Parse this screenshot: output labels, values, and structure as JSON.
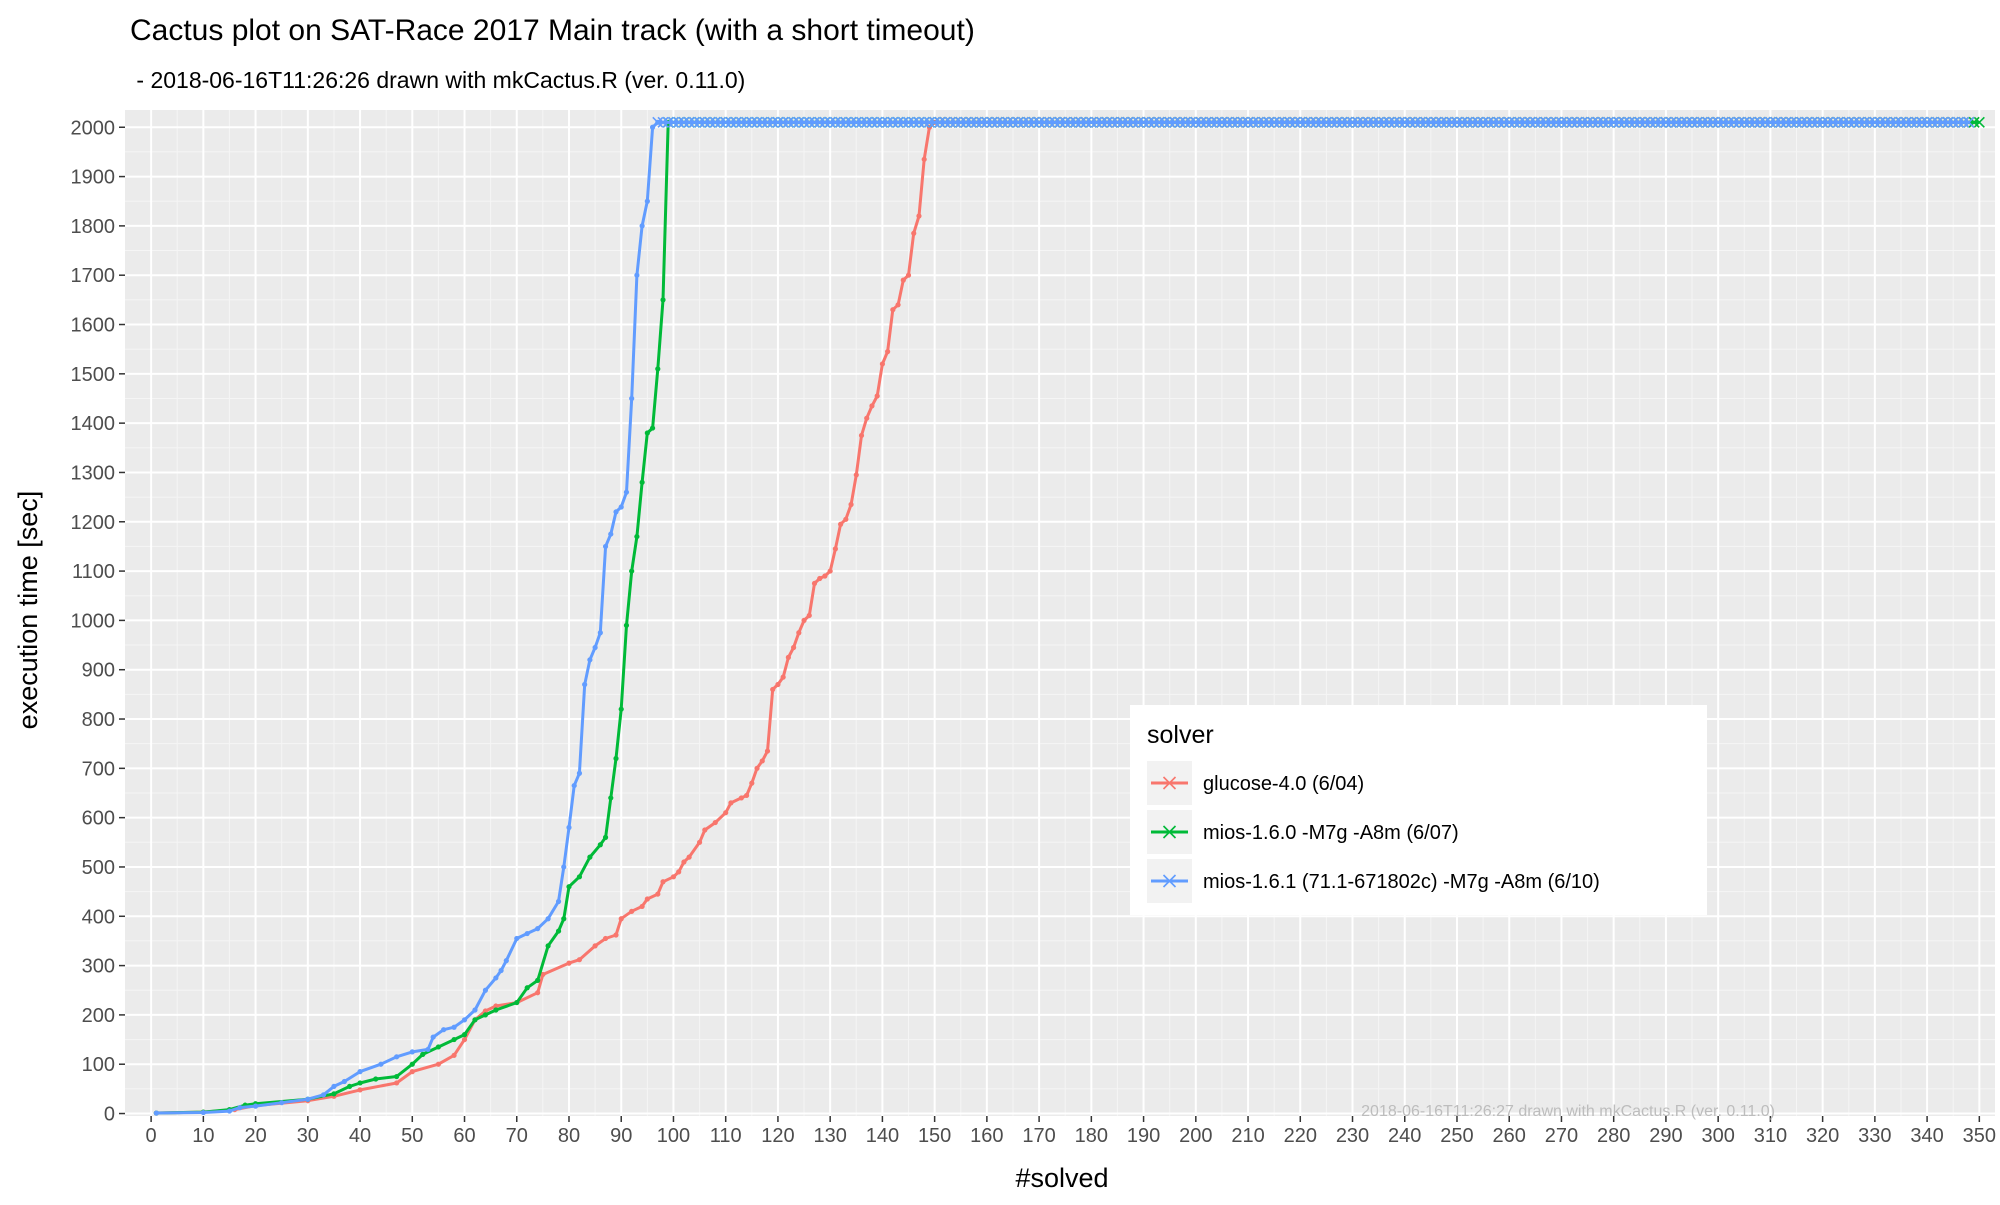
{
  "chart_data": {
    "type": "line",
    "title": "Cactus plot on SAT-Race 2017 Main track (with a short timeout)",
    "subtitle": " - 2018-06-16T11:26:26 drawn with mkCactus.R (ver. 0.11.0)",
    "xlabel": "#solved",
    "ylabel": "execution time [sec]",
    "xlim": [
      -5,
      353
    ],
    "ylim": [
      -5,
      2035
    ],
    "xticks": [
      0,
      10,
      20,
      30,
      40,
      50,
      60,
      70,
      80,
      90,
      100,
      110,
      120,
      130,
      140,
      150,
      160,
      170,
      180,
      190,
      200,
      210,
      220,
      230,
      240,
      250,
      260,
      270,
      280,
      290,
      300,
      310,
      320,
      330,
      340,
      350
    ],
    "yticks": [
      0,
      100,
      200,
      300,
      400,
      500,
      600,
      700,
      800,
      900,
      1000,
      1100,
      1200,
      1300,
      1400,
      1500,
      1600,
      1700,
      1800,
      1900,
      2000
    ],
    "grid": true,
    "legend": {
      "title": "solver",
      "position": "bottom-right"
    },
    "watermark": "2018-06-16T11:26:27 drawn with mkCactus.R (ver. 0.11.0)",
    "timeout_value": 2010,
    "series": [
      {
        "name": "glucose-4.0 (6/04)",
        "color": "#F8766D",
        "points": [
          [
            1,
            1
          ],
          [
            10,
            3
          ],
          [
            16,
            8
          ],
          [
            20,
            16
          ],
          [
            30,
            26
          ],
          [
            35,
            35
          ],
          [
            40,
            48
          ],
          [
            47,
            62
          ],
          [
            50,
            85
          ],
          [
            55,
            100
          ],
          [
            58,
            118
          ],
          [
            60,
            150
          ],
          [
            62,
            190
          ],
          [
            64,
            208
          ],
          [
            66,
            218
          ],
          [
            70,
            225
          ],
          [
            74,
            245
          ],
          [
            75,
            282
          ],
          [
            80,
            305
          ],
          [
            82,
            312
          ],
          [
            85,
            340
          ],
          [
            87,
            355
          ],
          [
            89,
            362
          ],
          [
            90,
            395
          ],
          [
            92,
            410
          ],
          [
            94,
            420
          ],
          [
            95,
            435
          ],
          [
            97,
            445
          ],
          [
            98,
            470
          ],
          [
            100,
            480
          ],
          [
            101,
            490
          ],
          [
            102,
            510
          ],
          [
            103,
            520
          ],
          [
            105,
            550
          ],
          [
            106,
            575
          ],
          [
            108,
            590
          ],
          [
            110,
            610
          ],
          [
            111,
            630
          ],
          [
            113,
            640
          ],
          [
            114,
            645
          ],
          [
            115,
            670
          ],
          [
            116,
            700
          ],
          [
            117,
            715
          ],
          [
            118,
            735
          ],
          [
            119,
            860
          ],
          [
            120,
            870
          ],
          [
            121,
            885
          ],
          [
            122,
            925
          ],
          [
            123,
            945
          ],
          [
            124,
            975
          ],
          [
            125,
            1000
          ],
          [
            126,
            1010
          ],
          [
            127,
            1075
          ],
          [
            128,
            1085
          ],
          [
            129,
            1090
          ],
          [
            130,
            1100
          ],
          [
            131,
            1145
          ],
          [
            132,
            1195
          ],
          [
            133,
            1205
          ],
          [
            134,
            1235
          ],
          [
            135,
            1295
          ],
          [
            136,
            1375
          ],
          [
            137,
            1410
          ],
          [
            138,
            1435
          ],
          [
            139,
            1455
          ],
          [
            140,
            1520
          ],
          [
            141,
            1545
          ],
          [
            142,
            1630
          ],
          [
            143,
            1640
          ],
          [
            144,
            1690
          ],
          [
            145,
            1700
          ],
          [
            146,
            1785
          ],
          [
            147,
            1820
          ],
          [
            148,
            1935
          ],
          [
            149,
            2000
          ],
          [
            150,
            2010
          ]
        ],
        "timeout_from": 150,
        "timeout_to": 349
      },
      {
        "name": "mios-1.6.0 -M7g -A8m (6/07)",
        "color": "#00BA38",
        "points": [
          [
            1,
            1
          ],
          [
            10,
            3
          ],
          [
            15,
            8
          ],
          [
            18,
            17
          ],
          [
            20,
            20
          ],
          [
            30,
            29
          ],
          [
            35,
            40
          ],
          [
            38,
            55
          ],
          [
            40,
            62
          ],
          [
            43,
            70
          ],
          [
            47,
            75
          ],
          [
            50,
            100
          ],
          [
            52,
            120
          ],
          [
            55,
            135
          ],
          [
            58,
            150
          ],
          [
            60,
            160
          ],
          [
            62,
            190
          ],
          [
            64,
            200
          ],
          [
            66,
            210
          ],
          [
            70,
            225
          ],
          [
            72,
            255
          ],
          [
            74,
            270
          ],
          [
            76,
            340
          ],
          [
            78,
            370
          ],
          [
            79,
            395
          ],
          [
            80,
            460
          ],
          [
            82,
            480
          ],
          [
            84,
            520
          ],
          [
            86,
            545
          ],
          [
            87,
            560
          ],
          [
            88,
            640
          ],
          [
            89,
            720
          ],
          [
            90,
            820
          ],
          [
            91,
            990
          ],
          [
            92,
            1100
          ],
          [
            93,
            1170
          ],
          [
            94,
            1280
          ],
          [
            95,
            1380
          ],
          [
            96,
            1390
          ],
          [
            97,
            1510
          ],
          [
            98,
            1650
          ],
          [
            99,
            2010
          ]
        ],
        "timeout_from": 99,
        "timeout_to": 350
      },
      {
        "name": "mios-1.6.1 (71.1-671802c) -M7g -A8m (6/10)",
        "color": "#619CFF",
        "points": [
          [
            1,
            1
          ],
          [
            10,
            2
          ],
          [
            15,
            5
          ],
          [
            17,
            12
          ],
          [
            20,
            15
          ],
          [
            25,
            22
          ],
          [
            30,
            29
          ],
          [
            33,
            38
          ],
          [
            35,
            55
          ],
          [
            37,
            65
          ],
          [
            40,
            85
          ],
          [
            44,
            100
          ],
          [
            47,
            115
          ],
          [
            50,
            125
          ],
          [
            53,
            130
          ],
          [
            54,
            155
          ],
          [
            56,
            170
          ],
          [
            58,
            175
          ],
          [
            60,
            190
          ],
          [
            62,
            210
          ],
          [
            64,
            250
          ],
          [
            66,
            275
          ],
          [
            67,
            290
          ],
          [
            68,
            310
          ],
          [
            70,
            355
          ],
          [
            72,
            365
          ],
          [
            74,
            375
          ],
          [
            76,
            395
          ],
          [
            78,
            430
          ],
          [
            79,
            500
          ],
          [
            80,
            580
          ],
          [
            81,
            665
          ],
          [
            82,
            690
          ],
          [
            83,
            870
          ],
          [
            84,
            920
          ],
          [
            85,
            945
          ],
          [
            86,
            975
          ],
          [
            87,
            1150
          ],
          [
            88,
            1175
          ],
          [
            89,
            1220
          ],
          [
            90,
            1230
          ],
          [
            91,
            1260
          ],
          [
            92,
            1450
          ],
          [
            93,
            1700
          ],
          [
            94,
            1800
          ],
          [
            95,
            1850
          ],
          [
            96,
            2000
          ],
          [
            97,
            2010
          ]
        ],
        "timeout_from": 97,
        "timeout_to": 348
      }
    ]
  }
}
